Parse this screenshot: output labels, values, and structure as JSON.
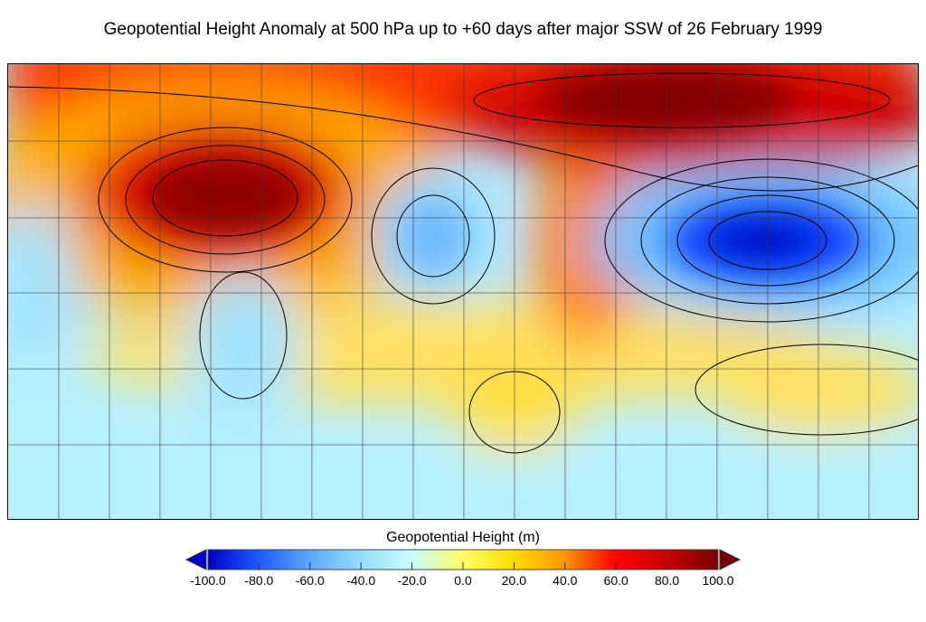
{
  "title": "Geopotential Height Anomaly at 500 hPa up to +60 days after major SSW of 26 February 1999",
  "colorbar": {
    "label": "Geopotential Height (m)",
    "ticks": [
      "-100.0",
      "-80.0",
      "-60.0",
      "-40.0",
      "-20.0",
      "0.0",
      "20.0",
      "40.0",
      "60.0",
      "80.0",
      "100.0"
    ],
    "range": [
      -100,
      100
    ],
    "extend": "both",
    "colors": [
      "#0000c8",
      "#1e5aff",
      "#5aaaff",
      "#96dcff",
      "#c8ffff",
      "#ffff64",
      "#ffdc00",
      "#ff9600",
      "#ff0000",
      "#c80000",
      "#780000"
    ]
  },
  "map": {
    "projection": "cylindrical",
    "gridlines": true,
    "coastlines": true,
    "contours": true
  }
}
